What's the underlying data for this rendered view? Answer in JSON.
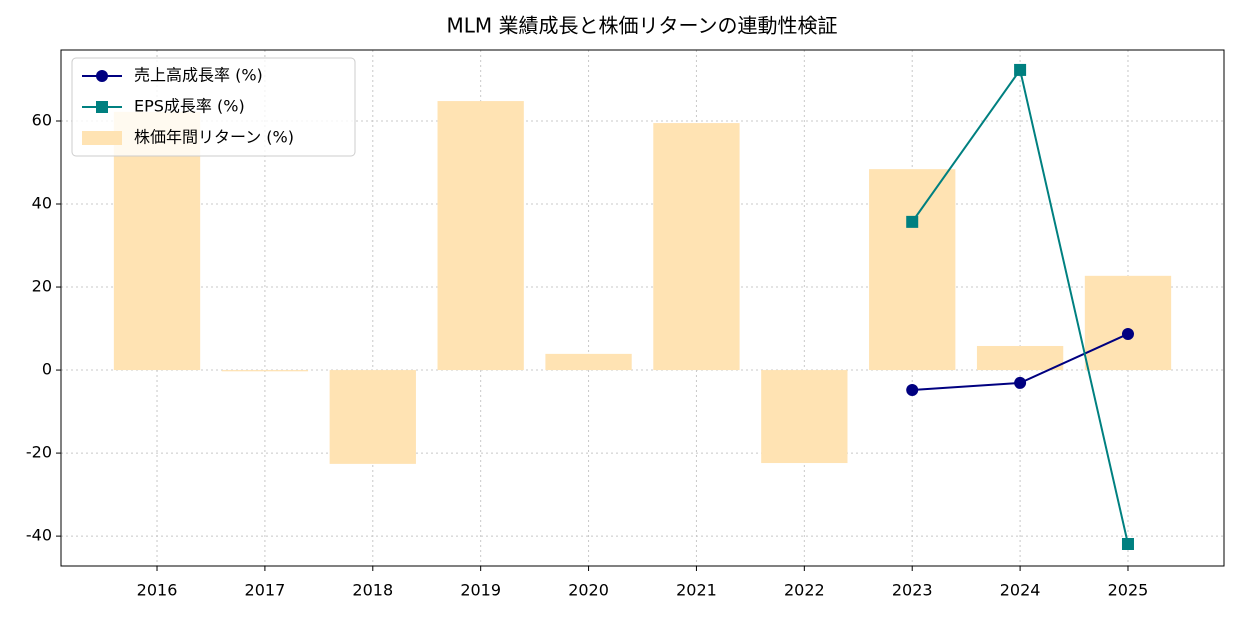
{
  "chart_data": {
    "type": "bar",
    "title": "MLM 業績成長と株価リターンの連動性検証",
    "categories": [
      "2016",
      "2017",
      "2018",
      "2019",
      "2020",
      "2021",
      "2022",
      "2023",
      "2024",
      "2025"
    ],
    "series": [
      {
        "name": "売上高成長率 (%)",
        "type": "line",
        "marker": "circle",
        "color": "#000080",
        "values": [
          null,
          null,
          null,
          null,
          null,
          null,
          null,
          -4.8,
          -3.1,
          8.7
        ]
      },
      {
        "name": "EPS成長率 (%)",
        "type": "line",
        "marker": "square",
        "color": "#008080",
        "values": [
          null,
          null,
          null,
          null,
          null,
          null,
          null,
          35.7,
          72.3,
          -41.9
        ]
      },
      {
        "name": "株価年間リターン (%)",
        "type": "bar",
        "color": "#ffe3b3",
        "values": [
          62.2,
          -0.3,
          -22.6,
          64.8,
          3.9,
          59.5,
          -22.4,
          48.4,
          5.8,
          22.7
        ]
      }
    ],
    "ylim": [
      -47.2,
      77.1
    ],
    "yticks": [
      -40,
      -20,
      0,
      20,
      40,
      60
    ],
    "grid": true,
    "legend": "upper left"
  }
}
